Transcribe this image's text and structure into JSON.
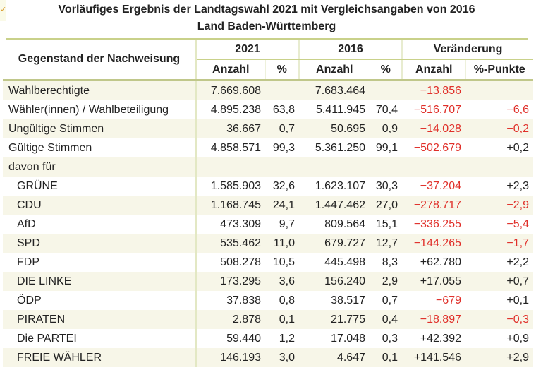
{
  "title_line1": "Vorläufiges Ergebnis der Landtagswahl 2021 mit Vergleichsangaben von 2016",
  "title_line2": "Land Baden-Württemberg",
  "header": {
    "label": "Gegenstand der Nachweisung",
    "y2021": "2021",
    "y2016": "2016",
    "change": "Veränderung",
    "anzahl": "Anzahl",
    "pct": "%",
    "pp": "%-Punkte"
  },
  "rows": [
    {
      "label": "Wahlberechtigte",
      "a21": "7.669.608",
      "p21": "",
      "a16": "7.683.464",
      "p16": "",
      "da": "−13.856",
      "dp": "",
      "da_neg": true,
      "dp_neg": false,
      "indent": false
    },
    {
      "label": "Wähler(innen) / Wahlbeteiligung",
      "a21": "4.895.238",
      "p21": "63,8",
      "a16": "5.411.945",
      "p16": "70,4",
      "da": "−516.707",
      "dp": "−6,6",
      "da_neg": true,
      "dp_neg": true,
      "indent": false
    },
    {
      "label": "Ungültige Stimmen",
      "a21": "36.667",
      "p21": "0,7",
      "a16": "50.695",
      "p16": "0,9",
      "da": "−14.028",
      "dp": "−0,2",
      "da_neg": true,
      "dp_neg": true,
      "indent": false
    },
    {
      "label": "Gültige Stimmen",
      "a21": "4.858.571",
      "p21": "99,3",
      "a16": "5.361.250",
      "p16": "99,1",
      "da": "−502.679",
      "dp": "+0,2",
      "da_neg": true,
      "dp_neg": false,
      "indent": false
    },
    {
      "label": "davon für",
      "a21": "",
      "p21": "",
      "a16": "",
      "p16": "",
      "da": "",
      "dp": "",
      "da_neg": false,
      "dp_neg": false,
      "indent": false
    },
    {
      "label": "GRÜNE",
      "a21": "1.585.903",
      "p21": "32,6",
      "a16": "1.623.107",
      "p16": "30,3",
      "da": "−37.204",
      "dp": "+2,3",
      "da_neg": true,
      "dp_neg": false,
      "indent": true
    },
    {
      "label": "CDU",
      "a21": "1.168.745",
      "p21": "24,1",
      "a16": "1.447.462",
      "p16": "27,0",
      "da": "−278.717",
      "dp": "−2,9",
      "da_neg": true,
      "dp_neg": true,
      "indent": true
    },
    {
      "label": "AfD",
      "a21": "473.309",
      "p21": "9,7",
      "a16": "809.564",
      "p16": "15,1",
      "da": "−336.255",
      "dp": "−5,4",
      "da_neg": true,
      "dp_neg": true,
      "indent": true
    },
    {
      "label": "SPD",
      "a21": "535.462",
      "p21": "11,0",
      "a16": "679.727",
      "p16": "12,7",
      "da": "−144.265",
      "dp": "−1,7",
      "da_neg": true,
      "dp_neg": true,
      "indent": true
    },
    {
      "label": "FDP",
      "a21": "508.278",
      "p21": "10,5",
      "a16": "445.498",
      "p16": "8,3",
      "da": "+62.780",
      "dp": "+2,2",
      "da_neg": false,
      "dp_neg": false,
      "indent": true
    },
    {
      "label": "DIE LINKE",
      "a21": "173.295",
      "p21": "3,6",
      "a16": "156.240",
      "p16": "2,9",
      "da": "+17.055",
      "dp": "+0,7",
      "da_neg": false,
      "dp_neg": false,
      "indent": true
    },
    {
      "label": "ÖDP",
      "a21": "37.838",
      "p21": "0,8",
      "a16": "38.517",
      "p16": "0,7",
      "da": "−679",
      "dp": "+0,1",
      "da_neg": true,
      "dp_neg": false,
      "indent": true
    },
    {
      "label": "PIRATEN",
      "a21": "2.878",
      "p21": "0,1",
      "a16": "21.775",
      "p16": "0,4",
      "da": "−18.897",
      "dp": "−0,3",
      "da_neg": true,
      "dp_neg": true,
      "indent": true
    },
    {
      "label": "Die PARTEI",
      "a21": "59.440",
      "p21": "1,2",
      "a16": "17.048",
      "p16": "0,3",
      "da": "+42.392",
      "dp": "+0,9",
      "da_neg": false,
      "dp_neg": false,
      "indent": true
    },
    {
      "label": "FREIE WÄHLER",
      "a21": "146.193",
      "p21": "3,0",
      "a16": "4.647",
      "p16": "0,1",
      "da": "+141.546",
      "dp": "+2,9",
      "da_neg": false,
      "dp_neg": false,
      "indent": true
    }
  ],
  "colors": {
    "negative": "#e0302a",
    "accent_line": "#c9d18a",
    "row_alt": "#f7f6e8"
  }
}
